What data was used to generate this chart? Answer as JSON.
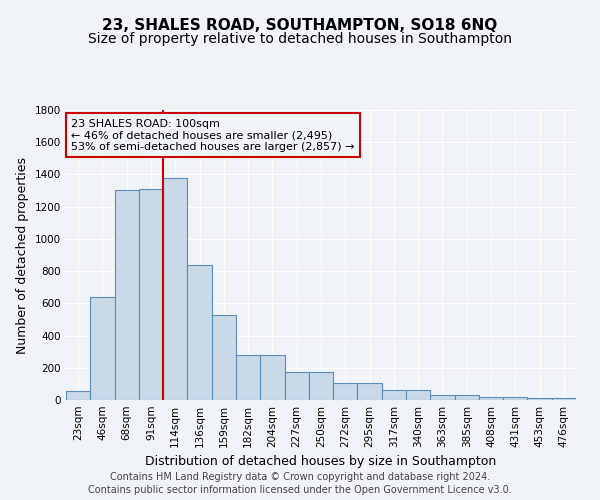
{
  "title": "23, SHALES ROAD, SOUTHAMPTON, SO18 6NQ",
  "subtitle": "Size of property relative to detached houses in Southampton",
  "xlabel": "Distribution of detached houses by size in Southampton",
  "ylabel": "Number of detached properties",
  "categories": [
    "23sqm",
    "46sqm",
    "68sqm",
    "91sqm",
    "114sqm",
    "136sqm",
    "159sqm",
    "182sqm",
    "204sqm",
    "227sqm",
    "250sqm",
    "272sqm",
    "295sqm",
    "317sqm",
    "340sqm",
    "363sqm",
    "385sqm",
    "408sqm",
    "431sqm",
    "453sqm",
    "476sqm"
  ],
  "values": [
    55,
    640,
    1305,
    1310,
    1375,
    840,
    525,
    278,
    278,
    175,
    175,
    105,
    105,
    60,
    60,
    30,
    30,
    20,
    20,
    15,
    10
  ],
  "bar_color": "#c9d9e8",
  "bar_edge_color": "#5b8db8",
  "vline_x_index": 4,
  "vline_color": "#cc0000",
  "ylim": [
    0,
    1800
  ],
  "yticks": [
    0,
    200,
    400,
    600,
    800,
    1000,
    1200,
    1400,
    1600,
    1800
  ],
  "annotation_box_text": "23 SHALES ROAD: 100sqm\n← 46% of detached houses are smaller (2,495)\n53% of semi-detached houses are larger (2,857) →",
  "annotation_box_color": "#cc0000",
  "footer_line1": "Contains HM Land Registry data © Crown copyright and database right 2024.",
  "footer_line2": "Contains public sector information licensed under the Open Government Licence v3.0.",
  "bg_color": "#f0f4f8",
  "grid_color": "#ffffff",
  "title_fontsize": 11,
  "subtitle_fontsize": 10,
  "axis_label_fontsize": 9,
  "tick_fontsize": 7.5,
  "footer_fontsize": 7,
  "annotation_fontsize": 8
}
